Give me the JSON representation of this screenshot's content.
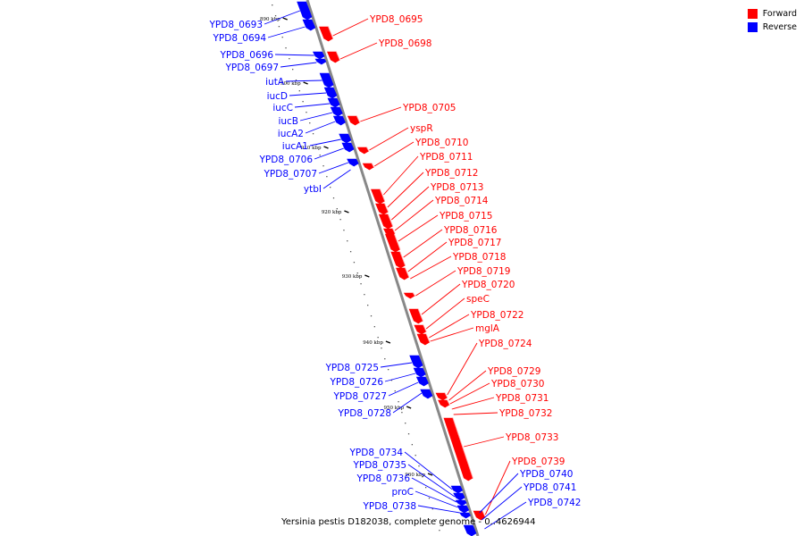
{
  "legend": {
    "forward_label": "Forward",
    "reverse_label": "Reverse",
    "forward_color": "#ff0000",
    "reverse_color": "#0000ff"
  },
  "caption": "Yersinia pestis D182038, complete genome - 0..4626944",
  "ticks": [
    {
      "label": "890 kbp"
    },
    {
      "label": "900 kbp"
    },
    {
      "label": "910 kbp"
    },
    {
      "label": "920 kbp"
    },
    {
      "label": "930 kbp"
    },
    {
      "label": "940 kbp"
    },
    {
      "label": "950 kbp"
    },
    {
      "label": "960 kbp"
    }
  ],
  "forward_genes": [
    "YPD8_0695",
    "YPD8_0698",
    "YPD8_0705",
    "yspR",
    "YPD8_0710",
    "YPD8_0711",
    "YPD8_0712",
    "YPD8_0713",
    "YPD8_0714",
    "YPD8_0715",
    "YPD8_0716",
    "YPD8_0717",
    "YPD8_0718",
    "YPD8_0719",
    "YPD8_0720",
    "speC",
    "YPD8_0722",
    "mglA",
    "YPD8_0724",
    "YPD8_0729",
    "YPD8_0730",
    "YPD8_0731",
    "YPD8_0732",
    "YPD8_0733",
    "YPD8_0739"
  ],
  "reverse_genes": [
    "YPD8_0693",
    "YPD8_0694",
    "YPD8_0696",
    "YPD8_0697",
    "iutA",
    "iucD",
    "iucC",
    "iucB",
    "iucA2",
    "iucA1",
    "YPD8_0706",
    "YPD8_0707",
    "ytbI",
    "YPD8_0725",
    "YPD8_0726",
    "YPD8_0727",
    "YPD8_0728",
    "YPD8_0734",
    "YPD8_0735",
    "YPD8_0736",
    "proC",
    "YPD8_0738",
    "YPD8_0740",
    "YPD8_0741",
    "YPD8_0742"
  ]
}
